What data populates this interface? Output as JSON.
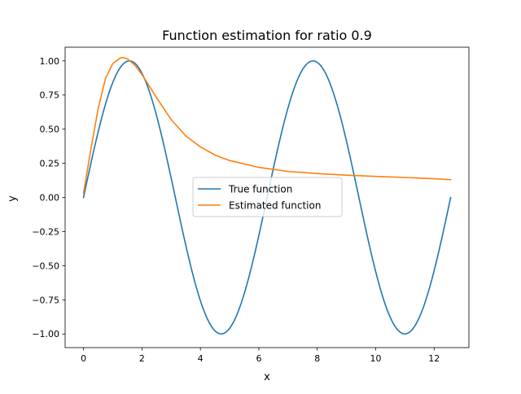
{
  "chart_data": {
    "type": "line",
    "title": "Function estimation for ratio 0.9",
    "xlabel": "x",
    "ylabel": "y",
    "xlim": [
      -0.63,
      13.19
    ],
    "ylim": [
      -1.1,
      1.1
    ],
    "xticks": [
      0,
      2,
      4,
      6,
      8,
      10,
      12
    ],
    "xtick_labels": [
      "0",
      "2",
      "4",
      "6",
      "8",
      "10",
      "12"
    ],
    "yticks": [
      -1.0,
      -0.75,
      -0.5,
      -0.25,
      0.0,
      0.25,
      0.5,
      0.75,
      1.0
    ],
    "ytick_labels": [
      "−1.00",
      "−0.75",
      "−0.50",
      "−0.25",
      "0.00",
      "0.25",
      "0.50",
      "0.75",
      "1.00"
    ],
    "grid": false,
    "legend_position": "center",
    "series": [
      {
        "name": "True function",
        "color": "#1f77b4",
        "function": "sin(x)",
        "x_range": [
          0,
          12.566
        ],
        "samples": 200
      },
      {
        "name": "Estimated function",
        "color": "#ff7f0e",
        "x": [
          0,
          0.25,
          0.5,
          0.75,
          1.0,
          1.25,
          1.35,
          1.5,
          1.75,
          2.0,
          2.5,
          3.0,
          3.5,
          4.0,
          4.5,
          5.0,
          6.0,
          7.0,
          8.0,
          9.0,
          10.0,
          11.0,
          12.0,
          12.566
        ],
        "y": [
          0.03,
          0.35,
          0.65,
          0.87,
          0.98,
          1.02,
          1.025,
          1.015,
          0.97,
          0.9,
          0.73,
          0.57,
          0.45,
          0.37,
          0.31,
          0.27,
          0.22,
          0.19,
          0.175,
          0.163,
          0.154,
          0.146,
          0.137,
          0.13
        ]
      }
    ]
  }
}
